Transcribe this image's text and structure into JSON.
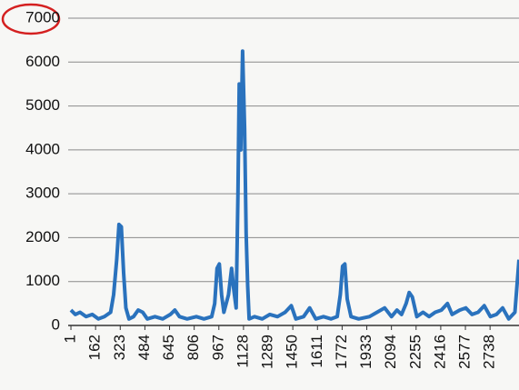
{
  "chart_data": {
    "type": "line",
    "x": [
      1,
      30,
      60,
      100,
      140,
      180,
      220,
      260,
      280,
      300,
      315,
      330,
      345,
      360,
      380,
      410,
      440,
      470,
      500,
      550,
      600,
      650,
      680,
      710,
      760,
      820,
      870,
      920,
      940,
      955,
      970,
      985,
      1000,
      1030,
      1050,
      1065,
      1080,
      1092,
      1100,
      1110,
      1122,
      1135,
      1145,
      1155,
      1165,
      1200,
      1250,
      1300,
      1350,
      1400,
      1440,
      1470,
      1520,
      1560,
      1600,
      1650,
      1700,
      1740,
      1760,
      1775,
      1790,
      1805,
      1830,
      1880,
      1950,
      2000,
      2050,
      2094,
      2130,
      2160,
      2190,
      2210,
      2230,
      2260,
      2300,
      2340,
      2380,
      2420,
      2460,
      2490,
      2540,
      2580,
      2620,
      2660,
      2700,
      2740,
      2780,
      2820,
      2860,
      2900,
      2927
    ],
    "series": [
      {
        "color": "#2a72bd",
        "values": [
          350,
          250,
          300,
          200,
          250,
          150,
          200,
          300,
          700,
          1500,
          2300,
          2250,
          1200,
          400,
          150,
          200,
          350,
          300,
          150,
          200,
          150,
          250,
          350,
          200,
          150,
          200,
          150,
          200,
          500,
          1300,
          1400,
          700,
          300,
          700,
          1300,
          800,
          400,
          3000,
          5500,
          4000,
          6250,
          4500,
          2100,
          900,
          150,
          200,
          150,
          250,
          200,
          300,
          450,
          150,
          200,
          400,
          150,
          200,
          150,
          200,
          700,
          1350,
          1400,
          600,
          200,
          150,
          200,
          300,
          400,
          200,
          350,
          250,
          500,
          750,
          650,
          200,
          300,
          200,
          300,
          350,
          500,
          250,
          350,
          400,
          250,
          300,
          450,
          200,
          250,
          400,
          150,
          300,
          1500
        ]
      }
    ],
    "xlim": [
      -17,
      2927
    ],
    "xticks": [
      1,
      162,
      323,
      484,
      645,
      806,
      967,
      1128,
      1289,
      1450,
      1611,
      1772,
      1933,
      2094,
      2255,
      2416,
      2577,
      2738
    ],
    "ylim": [
      0,
      7000
    ],
    "yticks": [
      0,
      1000,
      2000,
      3000,
      4000,
      5000,
      6000,
      7000
    ],
    "grid": true
  }
}
